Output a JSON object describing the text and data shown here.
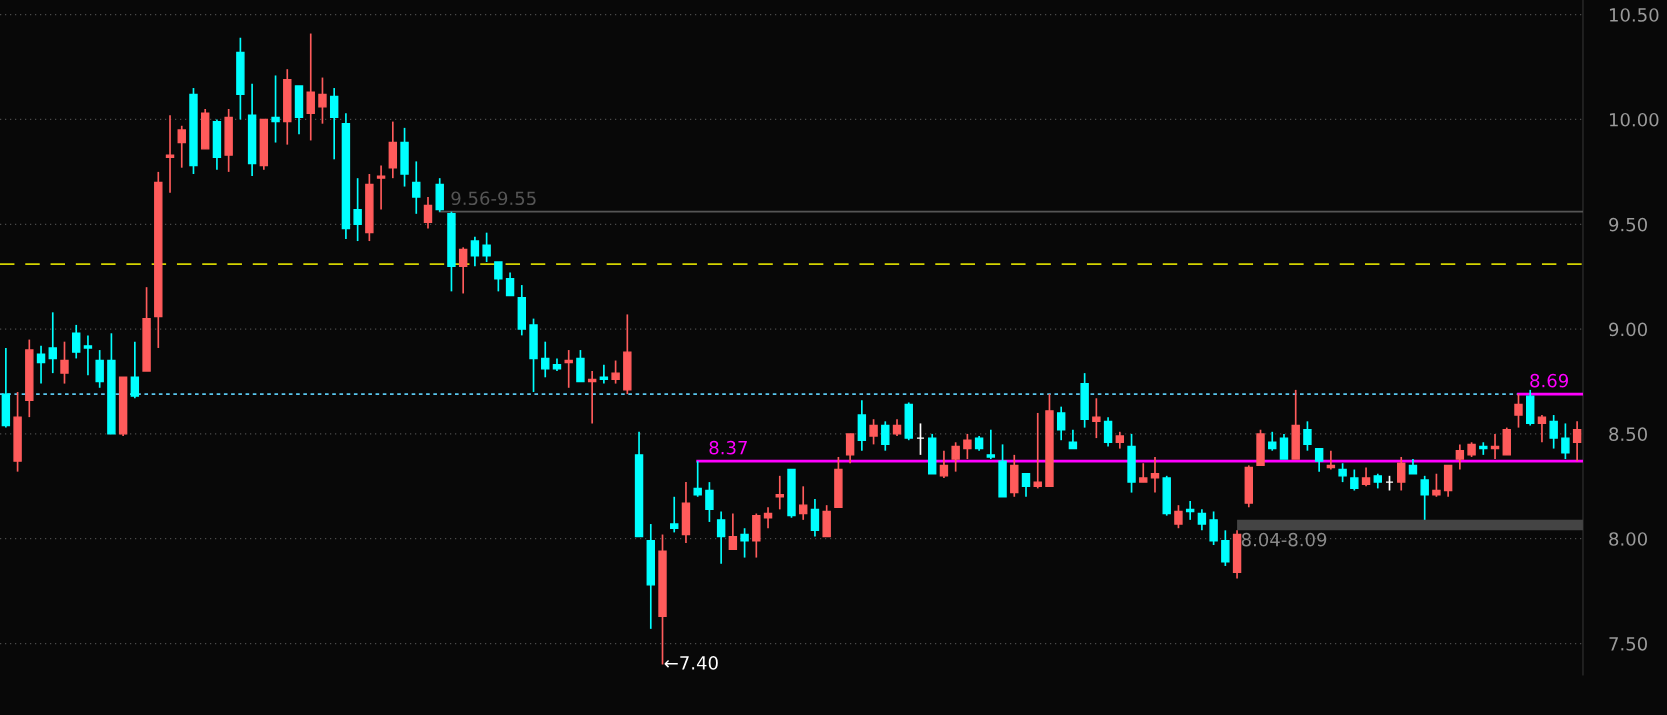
{
  "chart_data": {
    "type": "candlestick",
    "categories": [
      null,
      null,
      null,
      null,
      null,
      null,
      null,
      null,
      null,
      null,
      null,
      null,
      null,
      null,
      null,
      null,
      null,
      null,
      null,
      null,
      null,
      null,
      null,
      null,
      null,
      null,
      null,
      null,
      null,
      null,
      null,
      null,
      null,
      null,
      null,
      null,
      null,
      null,
      null,
      null,
      null,
      null,
      null,
      null,
      null,
      null,
      null,
      null,
      null,
      null,
      null,
      null,
      null,
      null,
      null,
      null,
      null,
      null,
      null,
      null,
      null,
      null,
      null,
      null,
      null,
      null,
      null,
      null,
      null,
      null,
      null,
      null,
      null,
      null,
      null,
      null,
      null,
      null,
      null,
      null,
      null,
      null,
      null,
      null,
      null,
      null,
      null,
      null,
      null,
      null,
      null,
      null,
      null,
      null,
      null,
      null,
      null,
      null,
      null,
      null,
      null,
      null,
      null,
      null,
      null,
      null,
      null,
      null,
      null,
      null,
      null,
      null,
      null,
      null,
      null,
      null,
      null,
      null,
      null,
      null,
      null,
      null,
      null,
      null,
      null,
      null,
      null,
      null,
      null,
      null,
      null,
      null,
      null,
      null,
      null
    ],
    "ohlc": [
      [
        8.69,
        8.91,
        8.53,
        8.54
      ],
      [
        8.37,
        8.7,
        8.32,
        8.58
      ],
      [
        8.66,
        8.95,
        8.58,
        8.9
      ],
      [
        8.88,
        8.92,
        8.74,
        8.84
      ],
      [
        8.91,
        9.08,
        8.79,
        8.86
      ],
      [
        8.79,
        8.94,
        8.74,
        8.85
      ],
      [
        8.98,
        9.02,
        8.86,
        8.89
      ],
      [
        8.92,
        8.97,
        8.78,
        8.91
      ],
      [
        8.85,
        8.9,
        8.72,
        8.75
      ],
      [
        8.85,
        8.98,
        8.5,
        8.5
      ],
      [
        8.5,
        8.77,
        8.49,
        8.77
      ],
      [
        8.77,
        8.94,
        8.67,
        8.68
      ],
      [
        8.8,
        9.2,
        8.8,
        9.05
      ],
      [
        9.06,
        9.75,
        8.91,
        9.7
      ],
      [
        9.82,
        10.02,
        9.65,
        9.83
      ],
      [
        9.89,
        9.97,
        9.77,
        9.95
      ],
      [
        10.12,
        10.15,
        9.74,
        9.78
      ],
      [
        9.86,
        10.05,
        9.86,
        10.03
      ],
      [
        9.99,
        10.0,
        9.76,
        9.82
      ],
      [
        9.83,
        10.05,
        9.75,
        10.01
      ],
      [
        10.32,
        10.39,
        10.0,
        10.12
      ],
      [
        10.02,
        10.17,
        9.73,
        9.79
      ],
      [
        9.78,
        10.0,
        9.76,
        10.0
      ],
      [
        10.01,
        10.21,
        9.89,
        9.99
      ],
      [
        9.99,
        10.24,
        9.88,
        10.19
      ],
      [
        10.16,
        10.16,
        9.93,
        10.01
      ],
      [
        10.03,
        10.41,
        9.9,
        10.13
      ],
      [
        10.06,
        10.2,
        9.98,
        10.12
      ],
      [
        10.11,
        10.15,
        9.81,
        10.01
      ],
      [
        9.98,
        10.03,
        9.43,
        9.48
      ],
      [
        9.57,
        9.72,
        9.42,
        9.5
      ],
      [
        9.46,
        9.74,
        9.42,
        9.69
      ],
      [
        9.72,
        9.78,
        9.57,
        9.73
      ],
      [
        9.77,
        9.99,
        9.72,
        9.89
      ],
      [
        9.89,
        9.96,
        9.68,
        9.74
      ],
      [
        9.7,
        9.8,
        9.55,
        9.63
      ],
      [
        9.51,
        9.63,
        9.48,
        9.59
      ],
      [
        9.69,
        9.72,
        9.56,
        9.57
      ],
      [
        9.55,
        9.56,
        9.18,
        9.3
      ],
      [
        9.3,
        9.39,
        9.17,
        9.38
      ],
      [
        9.42,
        9.44,
        9.3,
        9.35
      ],
      [
        9.4,
        9.46,
        9.32,
        9.35
      ],
      [
        9.32,
        9.32,
        9.18,
        9.24
      ],
      [
        9.24,
        9.27,
        9.16,
        9.16
      ],
      [
        9.15,
        9.21,
        8.97,
        9.0
      ],
      [
        9.02,
        9.05,
        8.7,
        8.86
      ],
      [
        8.86,
        8.94,
        8.77,
        8.81
      ],
      [
        8.83,
        8.86,
        8.8,
        8.81
      ],
      [
        8.84,
        8.9,
        8.72,
        8.85
      ],
      [
        8.86,
        8.9,
        8.75,
        8.75
      ],
      [
        8.75,
        8.8,
        8.55,
        8.76
      ],
      [
        8.77,
        8.83,
        8.74,
        8.76
      ],
      [
        8.76,
        8.85,
        8.74,
        8.79
      ],
      [
        8.71,
        9.07,
        8.69,
        8.89
      ],
      [
        8.4,
        8.51,
        8.01,
        8.01
      ],
      [
        7.99,
        8.07,
        7.57,
        7.78
      ],
      [
        7.63,
        8.02,
        7.4,
        7.94
      ],
      [
        8.07,
        8.2,
        8.03,
        8.05
      ],
      [
        8.02,
        8.27,
        7.98,
        8.17
      ],
      [
        8.24,
        8.37,
        8.2,
        8.21
      ],
      [
        8.23,
        8.27,
        8.08,
        8.14
      ],
      [
        8.09,
        8.13,
        7.88,
        8.01
      ],
      [
        7.95,
        8.12,
        7.95,
        8.01
      ],
      [
        8.02,
        8.05,
        7.91,
        7.99
      ],
      [
        7.99,
        8.12,
        7.91,
        8.11
      ],
      [
        8.1,
        8.15,
        8.05,
        8.12
      ],
      [
        8.2,
        8.3,
        8.14,
        8.21
      ],
      [
        8.33,
        8.33,
        8.1,
        8.11
      ],
      [
        8.12,
        8.25,
        8.09,
        8.16
      ],
      [
        8.14,
        8.19,
        8.01,
        8.04
      ],
      [
        8.01,
        8.16,
        8.01,
        8.13
      ],
      [
        8.15,
        8.39,
        8.15,
        8.33
      ],
      [
        8.4,
        8.5,
        8.36,
        8.5
      ],
      [
        8.59,
        8.66,
        8.42,
        8.47
      ],
      [
        8.49,
        8.57,
        8.45,
        8.54
      ],
      [
        8.54,
        8.56,
        8.42,
        8.45
      ],
      [
        8.5,
        8.57,
        8.49,
        8.54
      ],
      [
        8.64,
        8.65,
        8.47,
        8.48
      ],
      [
        8.48,
        8.55,
        8.4,
        8.48
      ],
      [
        8.48,
        8.5,
        8.31,
        8.31
      ],
      [
        8.3,
        8.42,
        8.29,
        8.35
      ],
      [
        8.38,
        8.46,
        8.32,
        8.44
      ],
      [
        8.43,
        8.5,
        8.38,
        8.47
      ],
      [
        8.48,
        8.49,
        8.42,
        8.43
      ],
      [
        8.4,
        8.52,
        8.38,
        8.39
      ],
      [
        8.37,
        8.45,
        8.2,
        8.2
      ],
      [
        8.22,
        8.4,
        8.2,
        8.35
      ],
      [
        8.31,
        8.31,
        8.2,
        8.25
      ],
      [
        8.25,
        8.6,
        8.24,
        8.27
      ],
      [
        8.25,
        8.69,
        8.25,
        8.61
      ],
      [
        8.6,
        8.63,
        8.47,
        8.52
      ],
      [
        8.46,
        8.52,
        8.43,
        8.43
      ],
      [
        8.74,
        8.79,
        8.53,
        8.57
      ],
      [
        8.56,
        8.67,
        8.48,
        8.58
      ],
      [
        8.56,
        8.58,
        8.44,
        8.46
      ],
      [
        8.46,
        8.51,
        8.43,
        8.49
      ],
      [
        8.44,
        8.5,
        8.22,
        8.27
      ],
      [
        8.27,
        8.36,
        8.27,
        8.29
      ],
      [
        8.29,
        8.39,
        8.22,
        8.31
      ],
      [
        8.29,
        8.3,
        8.11,
        8.12
      ],
      [
        8.07,
        8.16,
        8.05,
        8.13
      ],
      [
        8.14,
        8.18,
        8.09,
        8.13
      ],
      [
        8.12,
        8.14,
        8.04,
        8.07
      ],
      [
        8.09,
        8.13,
        7.97,
        7.99
      ],
      [
        7.99,
        8.04,
        7.87,
        7.89
      ],
      [
        7.84,
        8.04,
        7.81,
        8.02
      ],
      [
        8.17,
        8.35,
        8.15,
        8.34
      ],
      [
        8.35,
        8.52,
        8.35,
        8.5
      ],
      [
        8.46,
        8.51,
        8.42,
        8.43
      ],
      [
        8.48,
        8.5,
        8.38,
        8.38
      ],
      [
        8.38,
        8.71,
        8.38,
        8.54
      ],
      [
        8.52,
        8.56,
        8.42,
        8.45
      ],
      [
        8.43,
        8.43,
        8.32,
        8.37
      ],
      [
        8.34,
        8.42,
        8.33,
        8.35
      ],
      [
        8.33,
        8.36,
        8.27,
        8.3
      ],
      [
        8.29,
        8.33,
        8.23,
        8.24
      ],
      [
        8.26,
        8.34,
        8.25,
        8.29
      ],
      [
        8.3,
        8.31,
        8.24,
        8.27
      ],
      [
        8.27,
        8.3,
        8.23,
        8.27
      ],
      [
        8.27,
        8.39,
        8.23,
        8.36
      ],
      [
        8.35,
        8.38,
        8.31,
        8.31
      ],
      [
        8.28,
        8.3,
        8.09,
        8.21
      ],
      [
        8.21,
        8.31,
        8.2,
        8.23
      ],
      [
        8.23,
        8.35,
        8.2,
        8.35
      ],
      [
        8.38,
        8.45,
        8.33,
        8.42
      ],
      [
        8.4,
        8.46,
        8.39,
        8.45
      ],
      [
        8.44,
        8.46,
        8.4,
        8.43
      ],
      [
        8.43,
        8.5,
        8.38,
        8.44
      ],
      [
        8.4,
        8.53,
        8.4,
        8.52
      ],
      [
        8.59,
        8.69,
        8.53,
        8.64
      ],
      [
        8.68,
        8.71,
        8.54,
        8.55
      ],
      [
        8.55,
        8.59,
        8.46,
        8.58
      ],
      [
        8.56,
        8.59,
        8.43,
        8.48
      ],
      [
        8.48,
        8.55,
        8.38,
        8.41
      ],
      [
        8.46,
        8.56,
        8.37,
        8.52
      ]
    ],
    "colors": [
      "#00ffff",
      "#ff5b5b",
      "#ff5b5b",
      "#00ffff",
      "#00ffff",
      "#ff5b5b",
      "#00ffff",
      "#00ffff",
      "#00ffff",
      "#00ffff",
      "#ff5b5b",
      "#00ffff",
      "#ff5b5b",
      "#ff5b5b",
      "#ff5b5b",
      "#ff5b5b",
      "#00ffff",
      "#ff5b5b",
      "#00ffff",
      "#ff5b5b",
      "#00ffff",
      "#00ffff",
      "#ff5b5b",
      "#00ffff",
      "#ff5b5b",
      "#00ffff",
      "#ff5b5b",
      "#ff5b5b",
      "#00ffff",
      "#00ffff",
      "#00ffff",
      "#ff5b5b",
      "#ff5b5b",
      "#ff5b5b",
      "#00ffff",
      "#00ffff",
      "#ff5b5b",
      "#00ffff",
      "#00ffff",
      "#ff5b5b",
      "#00ffff",
      "#00ffff",
      "#00ffff",
      "#00ffff",
      "#00ffff",
      "#00ffff",
      "#00ffff",
      "#00ffff",
      "#ff5b5b",
      "#00ffff",
      "#ff5b5b",
      "#00ffff",
      "#ff5b5b",
      "#ff5b5b",
      "#00ffff",
      "#00ffff",
      "#ff5b5b",
      "#00ffff",
      "#ff5b5b",
      "#00ffff",
      "#00ffff",
      "#00ffff",
      "#ff5b5b",
      "#00ffff",
      "#ff5b5b",
      "#ff5b5b",
      "#ff5b5b",
      "#00ffff",
      "#ff5b5b",
      "#00ffff",
      "#ff5b5b",
      "#ff5b5b",
      "#ff5b5b",
      "#00ffff",
      "#ff5b5b",
      "#00ffff",
      "#ff5b5b",
      "#00ffff",
      "#ffffff",
      "#00ffff",
      "#ff5b5b",
      "#ff5b5b",
      "#ff5b5b",
      "#00ffff",
      "#00ffff",
      "#00ffff",
      "#ff5b5b",
      "#00ffff",
      "#ff5b5b",
      "#ff5b5b",
      "#00ffff",
      "#00ffff",
      "#00ffff",
      "#ff5b5b",
      "#00ffff",
      "#ff5b5b",
      "#00ffff",
      "#ff5b5b",
      "#ff5b5b",
      "#00ffff",
      "#ff5b5b",
      "#00ffff",
      "#00ffff",
      "#00ffff",
      "#00ffff",
      "#ff5b5b",
      "#ff5b5b",
      "#ff5b5b",
      "#00ffff",
      "#00ffff",
      "#ff5b5b",
      "#00ffff",
      "#00ffff",
      "#ff5b5b",
      "#00ffff",
      "#00ffff",
      "#ff5b5b",
      "#00ffff",
      "#ffffff",
      "#ff5b5b",
      "#00ffff",
      "#00ffff",
      "#ff5b5b",
      "#ff5b5b",
      "#ff5b5b",
      "#ff5b5b",
      "#00ffff",
      "#ff5b5b",
      "#ff5b5b",
      "#ff5b5b",
      "#00ffff",
      "#ff5b5b",
      "#00ffff",
      "#00ffff",
      "#ff5b5b"
    ],
    "ylim": [
      7.35,
      10.57
    ],
    "yticks": [
      {
        "value": 7.5,
        "label": "7.50"
      },
      {
        "value": 8.0,
        "label": "8.00"
      },
      {
        "value": 8.5,
        "label": "8.50"
      },
      {
        "value": 9.0,
        "label": "9.00"
      },
      {
        "value": 9.5,
        "label": "9.50"
      },
      {
        "value": 10.0,
        "label": "10.00"
      },
      {
        "value": 10.5,
        "label": "10.50"
      }
    ],
    "tick_labels": "y",
    "grid": "y",
    "ref_lines": [
      {
        "axis": "y",
        "value": 9.31,
        "label": null,
        "color": "#d4d400",
        "line_style": "dashed"
      },
      {
        "axis": "y",
        "value": 8.69,
        "label": null,
        "color": "#5ac8f0",
        "line_style": "dotted"
      },
      {
        "axis": "y",
        "value": 9.56,
        "label": "9.56-9.55",
        "color": "#555555",
        "line_style": "solid"
      },
      {
        "axis": "y",
        "value": 8.37,
        "label": "8.37",
        "color": "#ff00ff",
        "line_style": "solid"
      },
      {
        "axis": "y",
        "value": 8.69,
        "label": "8.69",
        "color": "#ff00ff",
        "line_style": "solid"
      }
    ],
    "bands": [
      {
        "axis": "y",
        "from": 8.04,
        "to": 8.09,
        "label": "8.04-8.09",
        "color": "#444444"
      }
    ],
    "annotations": [
      "←7.40"
    ]
  }
}
